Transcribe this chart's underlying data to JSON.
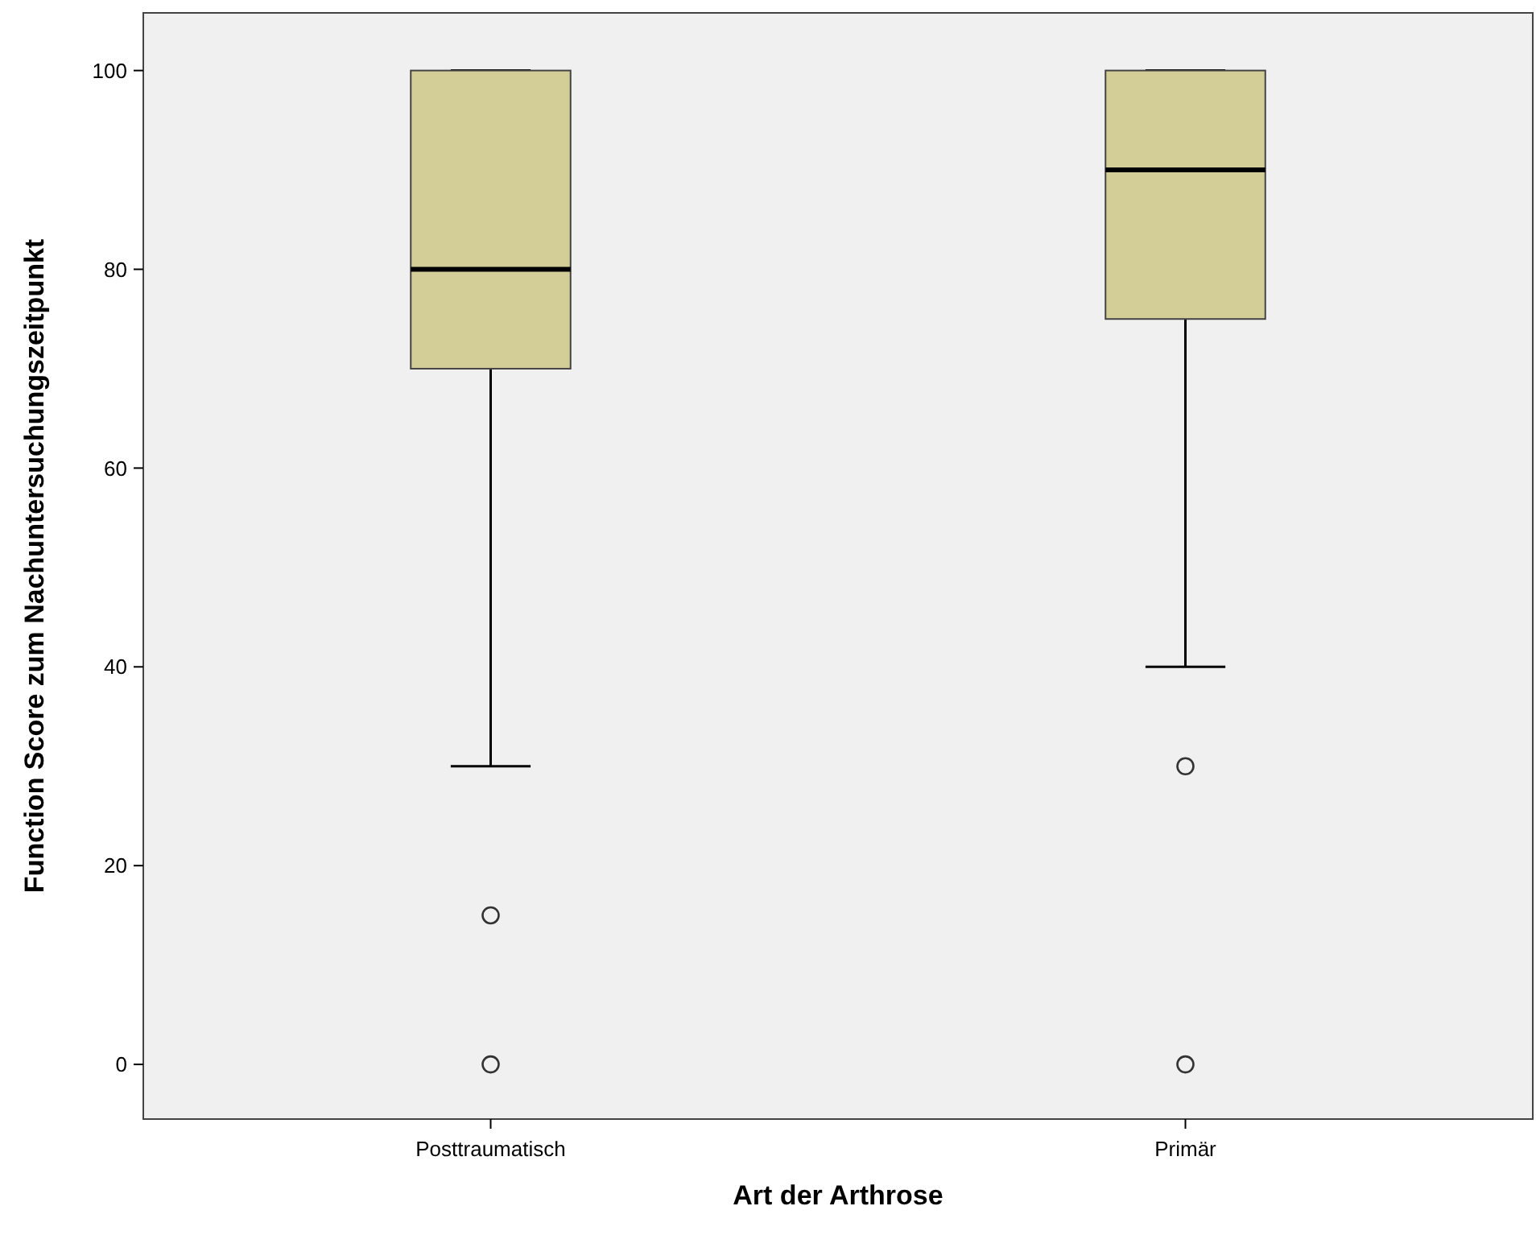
{
  "chart_data": {
    "type": "box",
    "xlabel": "Art der Arthrose",
    "ylabel": "Function Score zum Nachuntersuchungszeitpunkt",
    "categories": [
      "Posttraumatisch",
      "Primär"
    ],
    "boxes": [
      {
        "low": 30,
        "q1": 70,
        "median": 80,
        "q3": 100,
        "high": 100,
        "outliers": [
          15,
          0
        ]
      },
      {
        "low": 40,
        "q1": 75,
        "median": 90,
        "q3": 100,
        "high": 100,
        "outliers": [
          30,
          0
        ]
      }
    ],
    "color": "#d3ce98",
    "ylim": [
      -5.5,
      105.8
    ],
    "yticks": [
      0,
      20,
      40,
      60,
      80,
      100
    ]
  }
}
